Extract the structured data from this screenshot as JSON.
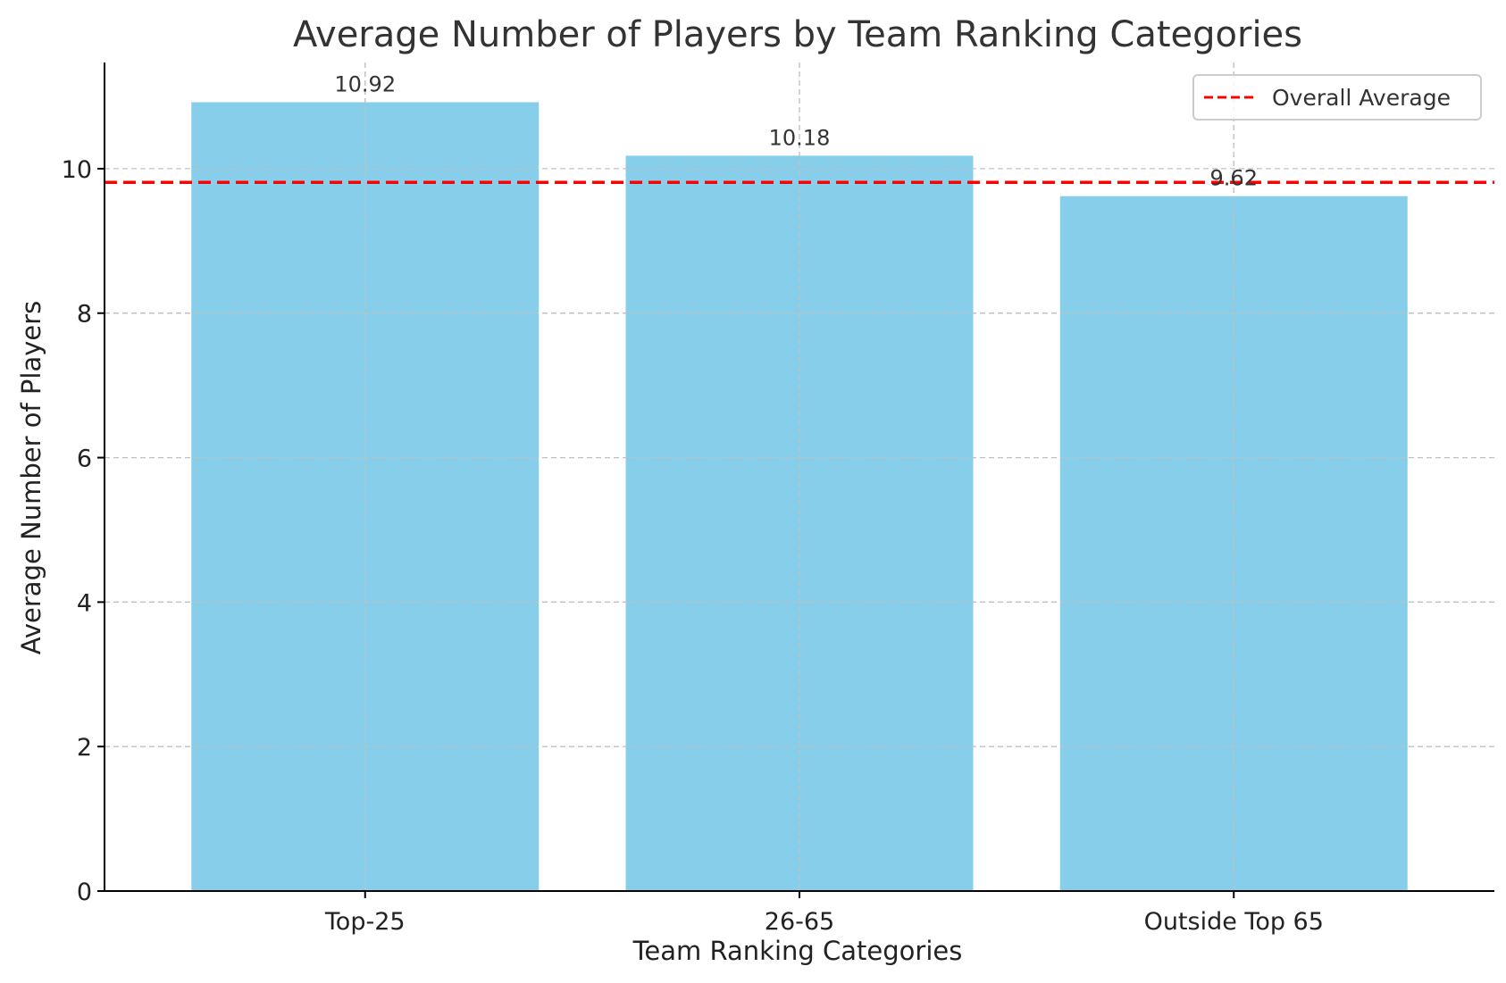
{
  "chart_data": {
    "type": "bar",
    "title": "Average Number of Players by Team Ranking Categories",
    "xlabel": "Team Ranking Categories",
    "ylabel": "Average Number of Players",
    "categories": [
      "Top-25",
      "26-65",
      "Outside Top 65"
    ],
    "values": [
      10.92,
      10.18,
      9.62
    ],
    "data_labels": [
      "10.92",
      "10.18",
      "9.62"
    ],
    "yticks": [
      0,
      2,
      4,
      6,
      8,
      10
    ],
    "ylim": [
      0,
      11.47
    ],
    "reference_line": {
      "name": "Overall Average",
      "value": 9.81
    },
    "legend": {
      "position": "top-right",
      "entries": [
        "Overall Average"
      ]
    },
    "grid": true,
    "colors": {
      "bar": "#87ceeb",
      "reference_line": "#ff0000",
      "grid": "#c0c0c0",
      "axis": "#000000"
    }
  }
}
